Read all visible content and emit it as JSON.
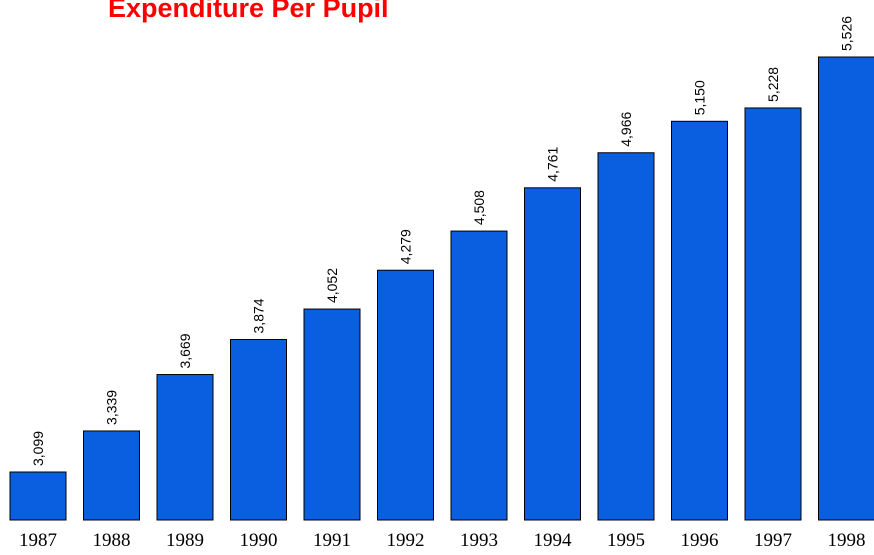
{
  "chart_data": {
    "type": "bar",
    "title": "Expenditure Per Pupil",
    "categories": [
      "1987",
      "1988",
      "1989",
      "1990",
      "1991",
      "1992",
      "1993",
      "1994",
      "1995",
      "1996",
      "1997",
      "1998"
    ],
    "values": [
      3099,
      3339,
      3669,
      3874,
      4052,
      4279,
      4508,
      4761,
      4966,
      5150,
      5228,
      5526
    ],
    "value_labels": [
      "3,099",
      "3,339",
      "3,669",
      "3,874",
      "4,052",
      "4,279",
      "4,508",
      "4,761",
      "4,966",
      "5,150",
      "5,228",
      "5,526"
    ],
    "color": "#0a5fe0"
  }
}
